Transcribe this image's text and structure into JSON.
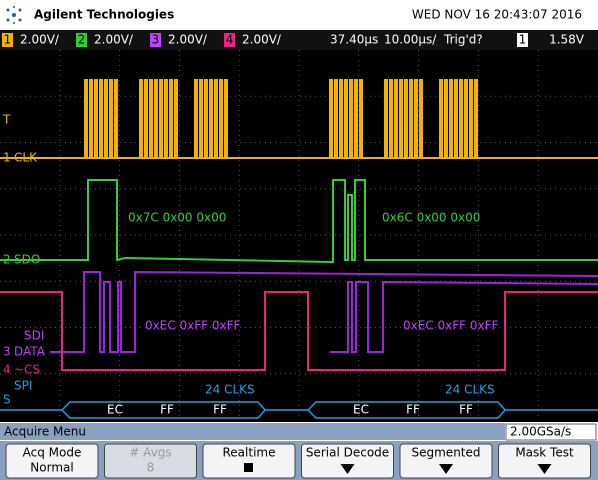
{
  "header": {
    "brand": "Agilent Technologies",
    "datetime": "WED NOV 16 20:43:07 2016"
  },
  "status": {
    "channels": [
      {
        "num": "1",
        "scale": "2.00V/"
      },
      {
        "num": "2",
        "scale": "2.00V/"
      },
      {
        "num": "3",
        "scale": "2.00V/"
      },
      {
        "num": "4",
        "scale": "2.00V/"
      }
    ],
    "delay": "37.40µs",
    "timebase": "10.00µs/",
    "trigger": "Trig'd?",
    "trigger_source": "1",
    "trigger_level": "1.58V"
  },
  "traces": {
    "trigger_marker": "T",
    "clk": {
      "num": "1",
      "label": "CLK"
    },
    "sdo": {
      "num": "2",
      "label": "SDO"
    },
    "sdi": "SDI",
    "data": {
      "num": "3",
      "label": "DATA"
    },
    "cs": {
      "num": "4",
      "label": "~CS"
    },
    "spi": "SPI",
    "bus_marker": "S"
  },
  "annotations": {
    "sdo": [
      "0x7C 0x00 0x00",
      "0x6C 0x00 0x00"
    ],
    "data": [
      "0xEC 0xFF 0xFF",
      "0xEC 0xFF 0xFF"
    ]
  },
  "decode": [
    {
      "clks": "24 CLKS",
      "bytes": [
        "EC",
        "FF",
        "FF"
      ]
    },
    {
      "clks": "24 CLKS",
      "bytes": [
        "EC",
        "FF",
        "FF"
      ]
    }
  ],
  "menu": {
    "title": "Acquire Menu",
    "sample_rate": "2.00GSa/s",
    "softkeys": [
      {
        "label": "Acq Mode",
        "value": "Normal"
      },
      {
        "label": "# Avgs",
        "value": "8"
      },
      {
        "label": "Realtime"
      },
      {
        "label": "Serial Decode"
      },
      {
        "label": "Segmented"
      },
      {
        "label": "Mask Test"
      }
    ]
  }
}
